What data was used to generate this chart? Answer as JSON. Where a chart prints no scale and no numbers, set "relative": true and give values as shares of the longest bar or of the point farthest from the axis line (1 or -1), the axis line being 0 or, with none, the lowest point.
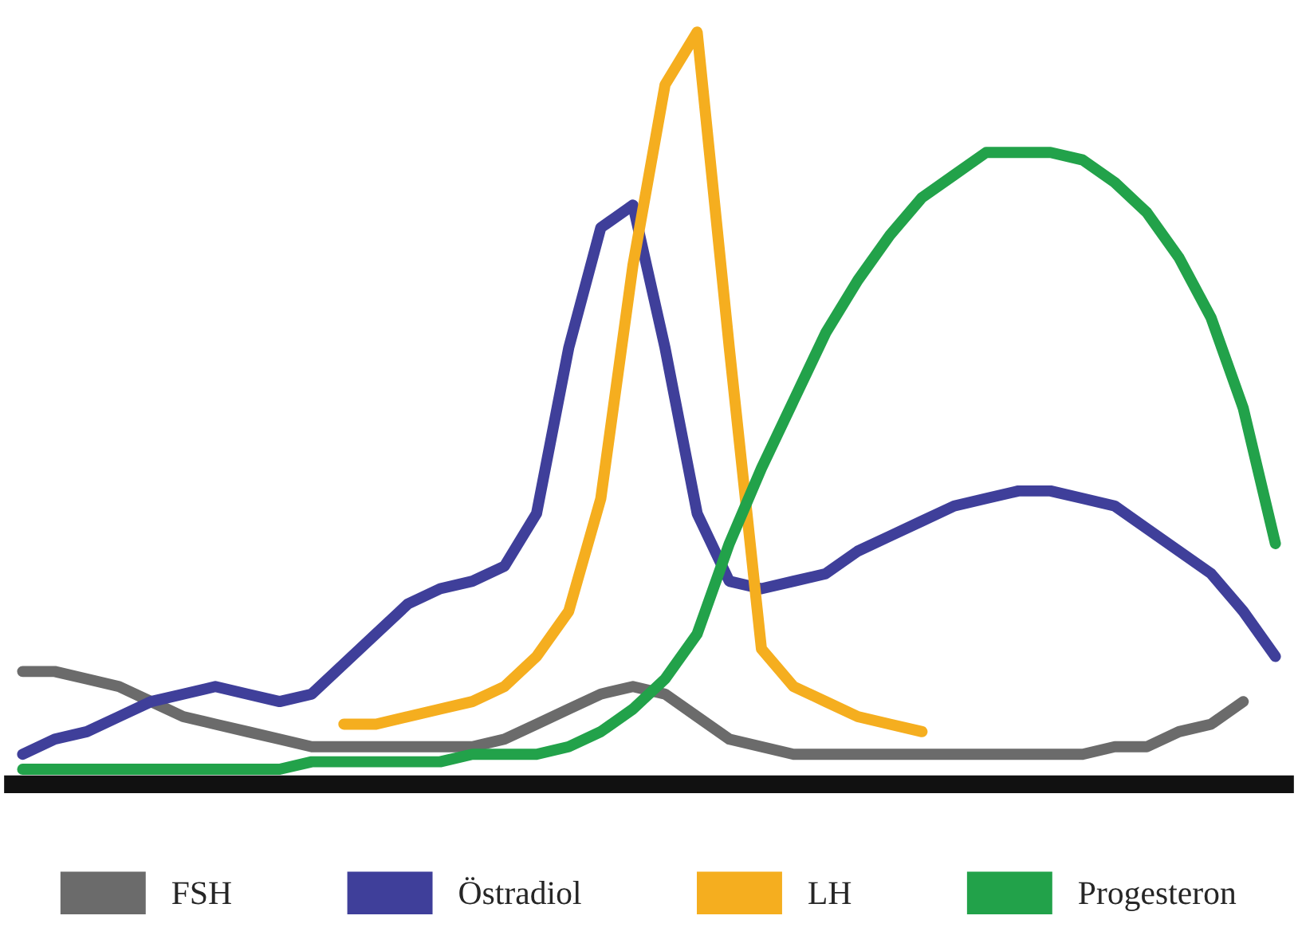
{
  "chart_data": {
    "type": "line",
    "relative": true,
    "categories": [
      null,
      null,
      null,
      null,
      null,
      null,
      null,
      null,
      null,
      null,
      null,
      null,
      null,
      null,
      null,
      null,
      null,
      null,
      null,
      null,
      null,
      null,
      null,
      null,
      null,
      null,
      null,
      null,
      null,
      null,
      null,
      null,
      null,
      null,
      null,
      null,
      null,
      null,
      null,
      null
    ],
    "series": [
      {
        "name": "FSH",
        "color": "#6b6b6b",
        "values": [
          0.15,
          0.15,
          0.14,
          0.13,
          0.11,
          0.09,
          0.08,
          0.07,
          0.06,
          0.05,
          0.05,
          0.05,
          0.05,
          0.05,
          0.05,
          0.06,
          0.08,
          0.1,
          0.12,
          0.13,
          0.12,
          0.09,
          0.06,
          0.05,
          0.04,
          0.04,
          0.04,
          0.04,
          0.04,
          0.04,
          0.04,
          0.04,
          0.04,
          0.04,
          0.05,
          0.05,
          0.07,
          0.08,
          0.11,
          null
        ]
      },
      {
        "name": "Östradiol",
        "color": "#3f3f9a",
        "values": [
          0.04,
          0.06,
          0.07,
          0.09,
          0.11,
          0.12,
          0.13,
          0.12,
          0.11,
          0.12,
          0.16,
          0.2,
          0.24,
          0.26,
          0.27,
          0.29,
          0.36,
          0.58,
          0.74,
          0.77,
          0.58,
          0.36,
          0.27,
          0.26,
          0.27,
          0.28,
          0.31,
          0.33,
          0.35,
          0.37,
          0.38,
          0.39,
          0.39,
          0.38,
          0.37,
          0.34,
          0.31,
          0.28,
          0.23,
          0.17
        ]
      },
      {
        "name": "LH",
        "color": "#f5ae1f",
        "values": [
          null,
          null,
          null,
          null,
          null,
          null,
          null,
          null,
          null,
          null,
          0.08,
          0.08,
          0.09,
          0.1,
          0.11,
          0.13,
          0.17,
          0.23,
          0.38,
          0.69,
          0.93,
          1.0,
          0.58,
          0.18,
          0.13,
          0.11,
          0.09,
          0.08,
          0.07,
          null,
          null,
          null,
          null,
          null,
          null,
          null,
          null,
          null,
          null,
          null
        ]
      },
      {
        "name": "Progesteron",
        "color": "#22a24a",
        "values": [
          0.02,
          0.02,
          0.02,
          0.02,
          0.02,
          0.02,
          0.02,
          0.02,
          0.02,
          0.03,
          0.03,
          0.03,
          0.03,
          0.03,
          0.04,
          0.04,
          0.04,
          0.05,
          0.07,
          0.1,
          0.14,
          0.2,
          0.32,
          0.42,
          0.51,
          0.6,
          0.67,
          0.73,
          0.78,
          0.81,
          0.84,
          0.84,
          0.84,
          0.83,
          0.8,
          0.76,
          0.7,
          0.62,
          0.5,
          0.32
        ]
      }
    ],
    "legend": "bottom",
    "grid": false,
    "marker": "none",
    "line_style": "solid"
  }
}
